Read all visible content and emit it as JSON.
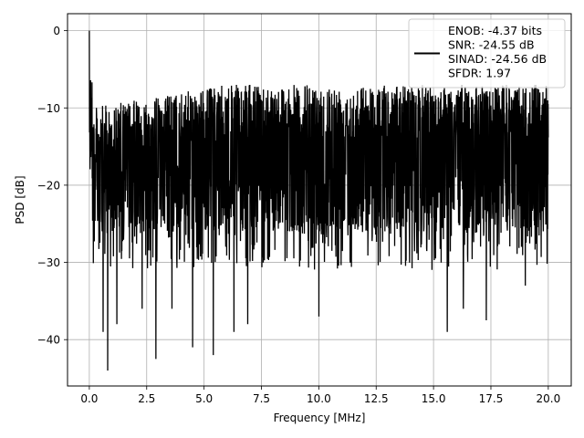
{
  "chart_data": {
    "type": "line",
    "title": "",
    "xlabel": "Frequency [MHz]",
    "ylabel": "PSD [dB]",
    "xlim": [
      -0.95,
      21.0
    ],
    "ylim": [
      -46.0,
      2.2
    ],
    "xticks": [
      0.0,
      2.5,
      5.0,
      7.5,
      10.0,
      12.5,
      15.0,
      17.5,
      20.0
    ],
    "xtick_labels": [
      "0.0",
      "2.5",
      "5.0",
      "7.5",
      "10.0",
      "12.5",
      "15.0",
      "17.5",
      "20.0"
    ],
    "yticks": [
      0,
      -10,
      -20,
      -30,
      -40
    ],
    "ytick_labels": [
      "0",
      "−10",
      "−20",
      "−30",
      "−40"
    ],
    "grid": true,
    "legend_position": "top-right",
    "series": [
      {
        "name": "ENOB: -4.37 bits\nSNR: -24.55 dB\nSINAD: -24.56 dB\nSFDR: 1.97",
        "color": "#000000",
        "noise_floor_db_range": [
          -30,
          -8
        ],
        "x_range": [
          0.0,
          20.0
        ],
        "peak": {
          "x": 0.0,
          "y": 0.0
        },
        "deep_dips": [
          {
            "x": 0.6,
            "y": -39
          },
          {
            "x": 0.8,
            "y": -44
          },
          {
            "x": 1.2,
            "y": -38
          },
          {
            "x": 2.3,
            "y": -36
          },
          {
            "x": 2.9,
            "y": -42.5
          },
          {
            "x": 3.6,
            "y": -36
          },
          {
            "x": 4.5,
            "y": -41
          },
          {
            "x": 5.4,
            "y": -42
          },
          {
            "x": 6.3,
            "y": -39
          },
          {
            "x": 6.9,
            "y": -38
          },
          {
            "x": 10.0,
            "y": -37
          },
          {
            "x": 15.6,
            "y": -39
          },
          {
            "x": 16.3,
            "y": -36
          },
          {
            "x": 17.3,
            "y": -37.5
          },
          {
            "x": 19.0,
            "y": -33
          }
        ]
      }
    ]
  }
}
